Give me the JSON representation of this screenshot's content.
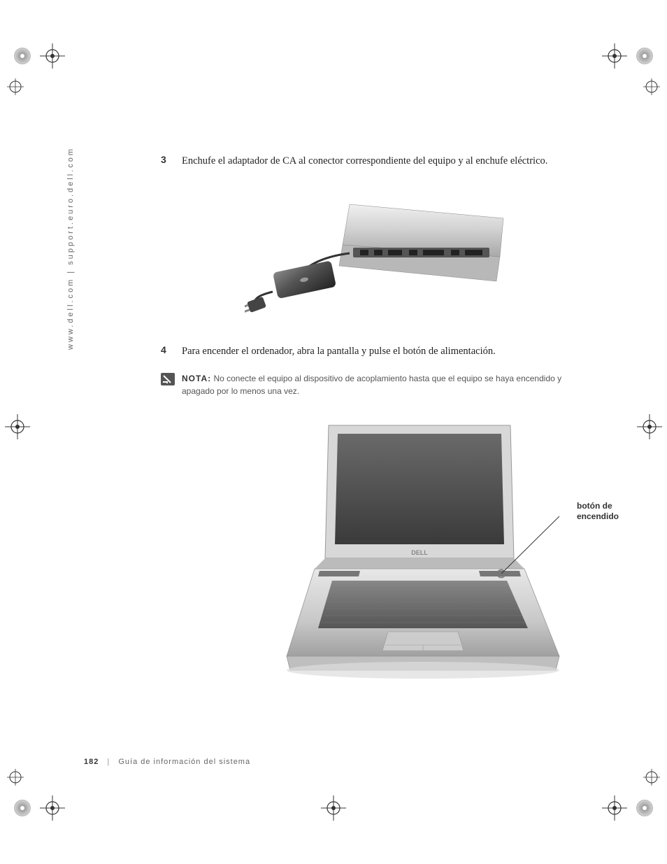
{
  "sidebar": {
    "url": "www.dell.com | support.euro.dell.com"
  },
  "steps": {
    "s3": {
      "num": "3",
      "text": "Enchufe el adaptador de CA al conector correspondiente del equipo y al enchufe eléctrico."
    },
    "s4": {
      "num": "4",
      "text": "Para encender el ordenador, abra la pantalla y pulse el botón de alimentación."
    }
  },
  "note": {
    "label": "NOTA:",
    "text": "No conecte el equipo al dispositivo de acoplamiento hasta que el equipo se haya encendido y apagado por lo menos una vez."
  },
  "callout": {
    "power_button": "botón de\nencendido"
  },
  "footer": {
    "page_num": "182",
    "title": "Guía de información del sistema"
  },
  "colors": {
    "text": "#222222",
    "muted": "#666666",
    "illustration_fill": "#cccccc",
    "illustration_dark": "#666666",
    "illustration_light": "#e8e8e8"
  }
}
